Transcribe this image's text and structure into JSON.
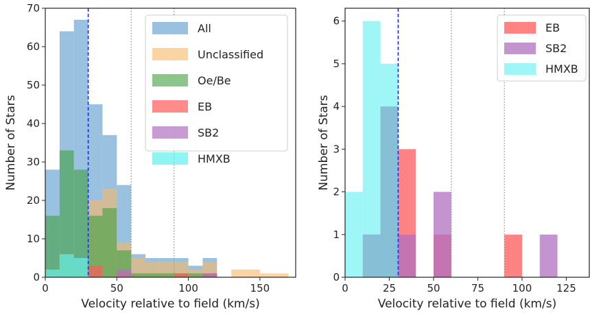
{
  "chart_data": [
    {
      "type": "bar",
      "subtype": "overlaid-histogram",
      "title": "",
      "xlabel": "Velocity relative to field (km/s)",
      "ylabel": "Number of Stars",
      "xlim": [
        0,
        175
      ],
      "ylim": [
        0,
        70
      ],
      "xticks": [
        0,
        50,
        100,
        150
      ],
      "yticks": [
        0,
        10,
        20,
        30,
        40,
        50,
        60,
        70
      ],
      "bin_width": 10,
      "vlines": [
        {
          "x": 30,
          "style": "dashed",
          "color": "#2030e0"
        },
        {
          "x": 60,
          "style": "dotted",
          "color": "#888888"
        },
        {
          "x": 90,
          "style": "dotted",
          "color": "#888888"
        }
      ],
      "legend_position": "top-right",
      "series": [
        {
          "name": "All",
          "color": "#8ab6dc",
          "alpha": 0.85,
          "bins": [
            [
              0,
              28
            ],
            [
              10,
              64
            ],
            [
              20,
              67
            ],
            [
              30,
              45
            ],
            [
              40,
              37
            ],
            [
              50,
              24
            ],
            [
              60,
              6
            ],
            [
              70,
              5
            ],
            [
              80,
              5
            ],
            [
              90,
              5
            ],
            [
              100,
              3
            ],
            [
              110,
              5
            ]
          ]
        },
        {
          "name": "Unclassified",
          "color": "#f7b866",
          "alpha": 0.6,
          "bins": [
            [
              0,
              2
            ],
            [
              10,
              6
            ],
            [
              20,
              4
            ],
            [
              30,
              20
            ],
            [
              40,
              23
            ],
            [
              50,
              9
            ],
            [
              60,
              5
            ],
            [
              70,
              4
            ],
            [
              80,
              4
            ],
            [
              90,
              4
            ],
            [
              100,
              2
            ],
            [
              110,
              4
            ],
            [
              130,
              2
            ],
            [
              140,
              2
            ],
            [
              150,
              1
            ],
            [
              160,
              1
            ]
          ]
        },
        {
          "name": "Oe/Be",
          "color": "#40a040",
          "alpha": 0.6,
          "bins": [
            [
              0,
              16
            ],
            [
              10,
              33
            ],
            [
              20,
              28
            ],
            [
              30,
              16
            ],
            [
              40,
              18
            ],
            [
              50,
              7
            ],
            [
              60,
              1
            ],
            [
              70,
              1
            ],
            [
              80,
              1
            ],
            [
              90,
              1
            ],
            [
              100,
              1
            ],
            [
              110,
              1
            ]
          ]
        },
        {
          "name": "EB",
          "color": "#ff5a5a",
          "alpha": 0.7,
          "bins": [
            [
              30,
              3
            ],
            [
              50,
              1
            ],
            [
              90,
              1
            ],
            [
              110,
              1
            ]
          ]
        },
        {
          "name": "SB2",
          "color": "#b070c0",
          "alpha": 0.7,
          "bins": [
            [
              50,
              2
            ],
            [
              110,
              1
            ]
          ]
        },
        {
          "name": "HMXB",
          "color": "#5ff0f0",
          "alpha": 0.7,
          "bins": [
            [
              0,
              2
            ],
            [
              10,
              6
            ],
            [
              20,
              5
            ]
          ]
        }
      ]
    },
    {
      "type": "bar",
      "subtype": "overlaid-histogram",
      "title": "",
      "xlabel": "Velocity relative to field (km/s)",
      "ylabel": "Number of Stars",
      "xlim": [
        0,
        138
      ],
      "ylim": [
        0,
        6.3
      ],
      "xticks": [
        0,
        25,
        50,
        75,
        100,
        125
      ],
      "yticks": [
        0,
        1,
        2,
        3,
        4,
        5,
        6
      ],
      "bin_width": 10,
      "vlines": [
        {
          "x": 30,
          "style": "dashed",
          "color": "#2030e0"
        },
        {
          "x": 60,
          "style": "dotted",
          "color": "#888888"
        },
        {
          "x": 90,
          "style": "dotted",
          "color": "#888888"
        }
      ],
      "legend_position": "top-right",
      "series": [
        {
          "name": "EB",
          "color": "#ff5a5a",
          "alpha": 0.75,
          "bins": [
            [
              10,
              1
            ],
            [
              20,
              4
            ],
            [
              30,
              3
            ],
            [
              50,
              1
            ],
            [
              90,
              1
            ]
          ]
        },
        {
          "name": "SB2",
          "color": "#b070c0",
          "alpha": 0.75,
          "bins": [
            [
              10,
              1
            ],
            [
              20,
              4
            ],
            [
              30,
              1
            ],
            [
              50,
              2
            ],
            [
              110,
              1
            ]
          ]
        },
        {
          "name": "HMXB",
          "color": "#5ff0f0",
          "alpha": 0.6,
          "bins": [
            [
              0,
              2
            ],
            [
              10,
              6
            ],
            [
              20,
              5
            ]
          ]
        }
      ]
    }
  ]
}
